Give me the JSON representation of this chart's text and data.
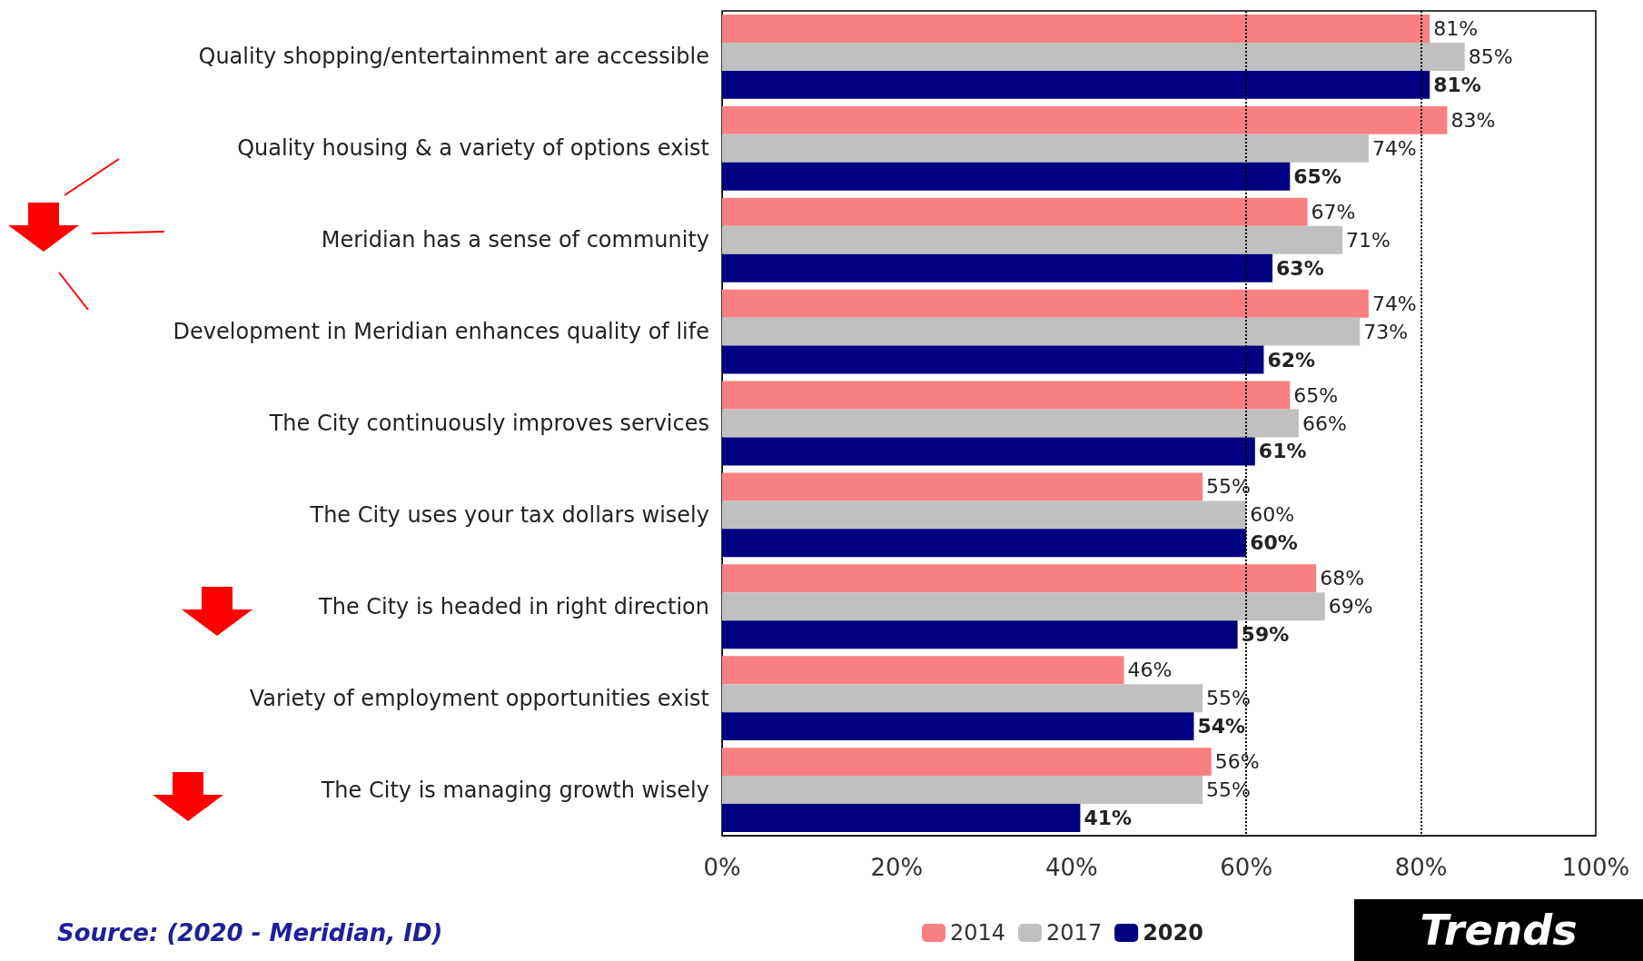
{
  "chart_data": {
    "type": "bar",
    "orientation": "horizontal",
    "categories": [
      "Quality shopping/entertainment are accessible",
      "Quality housing & a variety of options exist",
      "Meridian has a sense of community",
      "Development in Meridian enhances quality of life",
      "The City continuously improves services",
      "The City uses your tax dollars wisely",
      "The City is headed in right direction",
      "Variety of employment opportunities exist",
      "The City is managing growth wisely"
    ],
    "series": [
      {
        "name": "2014",
        "color": "#f98080",
        "values": [
          81,
          83,
          67,
          74,
          65,
          55,
          68,
          46,
          56
        ],
        "value_labels": [
          "81%",
          "83%",
          "67%",
          "74%",
          "65%",
          "55%",
          "68%",
          "46%",
          "56%"
        ]
      },
      {
        "name": "2017",
        "color": "#c0c0c0",
        "values": [
          85,
          74,
          71,
          73,
          66,
          60,
          69,
          55,
          55
        ],
        "value_labels": [
          "85%",
          "74%",
          "71%",
          "73%",
          "66%",
          "60%",
          "69%",
          "55%",
          "55%"
        ]
      },
      {
        "name": "2020",
        "color": "#000080",
        "values": [
          81,
          65,
          63,
          62,
          61,
          60,
          59,
          54,
          41
        ],
        "value_labels": [
          "81%",
          "65%",
          "63%",
          "62%",
          "61%",
          "60%",
          "59%",
          "54%",
          "41%"
        ]
      }
    ],
    "xlim": [
      0,
      100
    ],
    "xticks": [
      {
        "value": 0,
        "label": "0%"
      },
      {
        "value": 20,
        "label": "20%"
      },
      {
        "value": 40,
        "label": "40%"
      },
      {
        "value": 60,
        "label": "60%"
      },
      {
        "value": 80,
        "label": "80%"
      },
      {
        "value": 100,
        "label": "100%"
      }
    ],
    "ref_lines": [
      {
        "axis": "x",
        "value": 60,
        "label": null,
        "color": "#000000",
        "line_style": "dotted"
      },
      {
        "axis": "x",
        "value": 80,
        "label": null,
        "color": "#000000",
        "line_style": "dotted"
      }
    ],
    "legend": "bottom",
    "grid": false,
    "annotations": [
      "Source: (2020 - Meridian, ID)",
      "Trends"
    ]
  }
}
